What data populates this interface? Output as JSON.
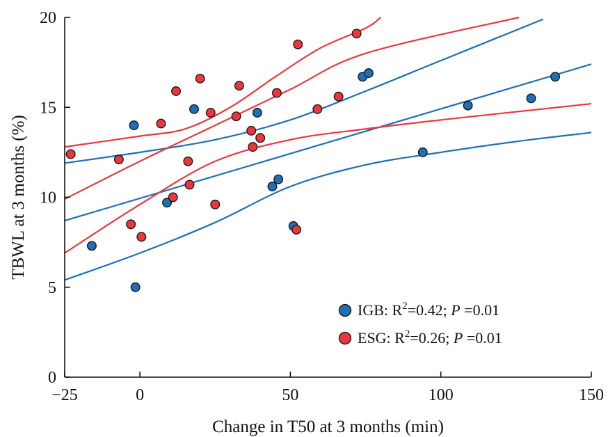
{
  "chart_data": {
    "type": "scatter",
    "title": "",
    "xlabel": "Change in T50 at 3 months (min)",
    "ylabel": "TBWL at 3 months  (%)",
    "xlim": [
      -25,
      150
    ],
    "ylim": [
      0,
      20
    ],
    "xticks": [
      -25,
      0,
      50,
      100,
      150
    ],
    "yticks": [
      0,
      5,
      10,
      15,
      20
    ],
    "xtick_labels": [
      "−25",
      "0",
      "50",
      "100",
      "150"
    ],
    "ytick_labels": [
      "0",
      "5",
      "10",
      "15",
      "20"
    ],
    "grid": false,
    "legend_position": "bottom-right",
    "series": [
      {
        "name": "IGB",
        "color": "#1f6fb4",
        "legend_prefix": "IGB: R",
        "legend_sup": "2",
        "legend_mid": "=0.42;  ",
        "legend_p": "P",
        "legend_suffix": " =0.01",
        "x": [
          -16,
          -2,
          -1.5,
          9,
          18,
          39,
          44,
          46,
          51,
          74,
          76,
          94,
          109,
          130,
          138
        ],
        "y": [
          7.3,
          14.0,
          5.0,
          9.7,
          14.9,
          14.7,
          10.6,
          11.0,
          8.4,
          16.7,
          16.9,
          12.5,
          15.1,
          15.5,
          16.7
        ],
        "fit_center": [
          [
            -25,
            8.7
          ],
          [
            150,
            17.4
          ]
        ],
        "fit_upper": [
          [
            -25,
            11.9
          ],
          [
            0,
            12.5
          ],
          [
            25,
            13.2
          ],
          [
            50,
            14.3
          ],
          [
            75,
            15.9
          ],
          [
            100,
            17.6
          ],
          [
            134,
            19.9
          ]
        ],
        "fit_lower": [
          [
            -25,
            5.4
          ],
          [
            0,
            6.9
          ],
          [
            25,
            8.6
          ],
          [
            50,
            10.6
          ],
          [
            75,
            11.8
          ],
          [
            100,
            12.5
          ],
          [
            125,
            13.1
          ],
          [
            150,
            13.6
          ]
        ]
      },
      {
        "name": "ESG",
        "color": "#e8383d",
        "legend_prefix": "ESG: R",
        "legend_sup": "2",
        "legend_mid": "=0.26;  ",
        "legend_p": "P",
        "legend_suffix": " =0.01",
        "x": [
          -23,
          -7,
          -3,
          0.5,
          7,
          11,
          12,
          16,
          16.5,
          20,
          23.5,
          25,
          32,
          33,
          37,
          37.5,
          40,
          45.5,
          52,
          52.5,
          59,
          66,
          72
        ],
        "y": [
          12.4,
          12.1,
          8.5,
          7.8,
          14.1,
          10.0,
          15.9,
          12.0,
          10.7,
          16.6,
          14.7,
          9.6,
          14.5,
          16.2,
          13.7,
          12.8,
          13.3,
          15.8,
          8.2,
          18.5,
          14.9,
          15.6,
          19.1
        ],
        "fit_center": [
          [
            -25,
            9.9
          ],
          [
            0,
            12.0
          ],
          [
            25,
            14.0
          ],
          [
            50,
            16.0
          ],
          [
            75,
            18.0
          ],
          [
            126,
            20.0
          ]
        ],
        "fit_upper": [
          [
            -25,
            12.8
          ],
          [
            0,
            13.4
          ],
          [
            15,
            13.8
          ],
          [
            30,
            15.0
          ],
          [
            45,
            16.7
          ],
          [
            60,
            18.3
          ],
          [
            75,
            19.4
          ],
          [
            80,
            20.0
          ]
        ],
        "fit_lower": [
          [
            -25,
            6.9
          ],
          [
            0,
            9.6
          ],
          [
            25,
            12.0
          ],
          [
            50,
            13.2
          ],
          [
            75,
            13.8
          ],
          [
            100,
            14.3
          ],
          [
            150,
            15.2
          ]
        ]
      }
    ]
  }
}
